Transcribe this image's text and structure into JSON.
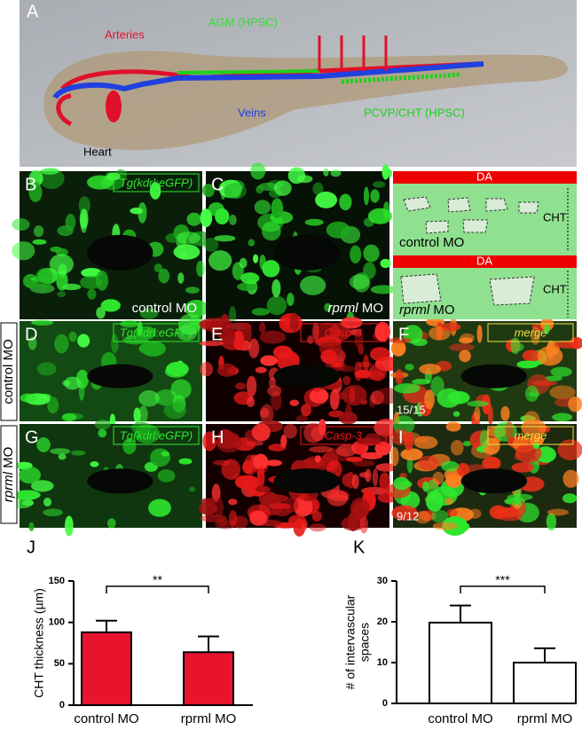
{
  "panels": {
    "a": {
      "letter": "A",
      "arteries": "Arteries",
      "agm": "AGM (HPSC)",
      "veins": "Veins",
      "pcvp": "PCVP/CHT (HPSC)",
      "heart": "Heart"
    },
    "b": {
      "letter": "B",
      "marker": "Tg(kdrl:eGFP)",
      "condition": "control MO"
    },
    "c": {
      "letter": "C",
      "gene": "rprml",
      "condition": "MO"
    },
    "schematic": {
      "top": {
        "vessel": "DA",
        "region": "CHT",
        "condition": "control MO"
      },
      "bottom": {
        "vessel": "DA",
        "region": "CHT",
        "gene": "rprml",
        "condition": "MO"
      }
    },
    "d": {
      "letter": "D",
      "marker": "Tg(kdrl:eGFP)"
    },
    "e": {
      "letter": "E",
      "marker": "Casp-3"
    },
    "f": {
      "letter": "F",
      "marker": "merge",
      "count": "15/15"
    },
    "g": {
      "letter": "G",
      "marker": "Tg(kdrl:eGFP)"
    },
    "h": {
      "letter": "H",
      "marker": "Casp-3"
    },
    "i": {
      "letter": "I",
      "marker": "merge",
      "count": "9/12"
    },
    "row_labels": {
      "control": "control MO",
      "rprml_gene": "rprml",
      "rprml": "MO"
    }
  },
  "chart_data": [
    {
      "type": "bar",
      "panel": "J",
      "y_label": [
        "CHT thickness (µm)"
      ],
      "categories": [
        "control MO",
        "rprml MO"
      ],
      "values": [
        88,
        64
      ],
      "errors": [
        14,
        19
      ],
      "color": "#e8132d",
      "ylim": [
        0,
        150
      ],
      "yticks": [
        0,
        50,
        100,
        150
      ],
      "significance": "**"
    },
    {
      "type": "bar",
      "panel": "K",
      "y_label": [
        "# of intervascular",
        "spaces"
      ],
      "categories": [
        "control MO",
        "rprml MO"
      ],
      "values": [
        19.8,
        10
      ],
      "errors": [
        4.2,
        3.5
      ],
      "color": "#ffffff",
      "ylim": [
        0,
        30
      ],
      "yticks": [
        0,
        10,
        20,
        30
      ],
      "significance": "***"
    }
  ]
}
